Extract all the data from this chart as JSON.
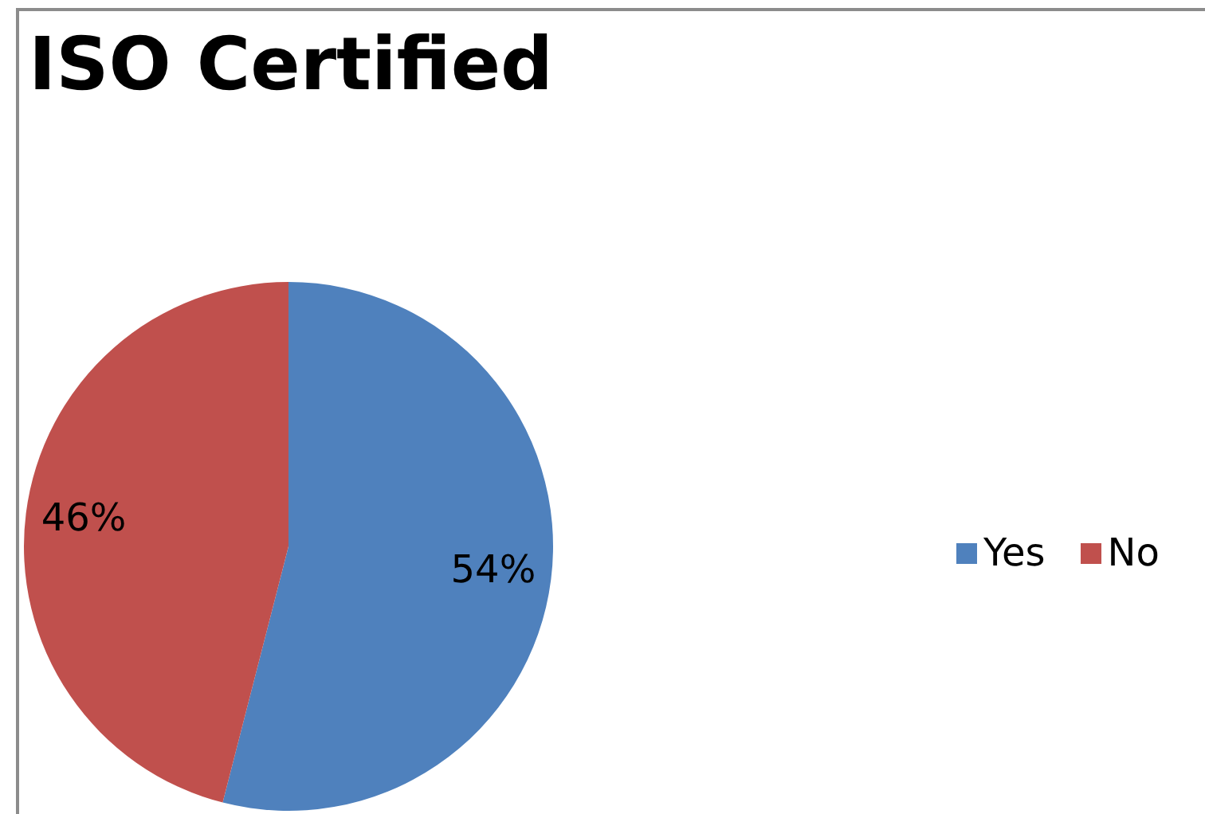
{
  "chart_data": {
    "type": "pie",
    "title": "ISO Certified",
    "categories": [
      "Yes",
      "No"
    ],
    "values": [
      54,
      46
    ],
    "value_labels": [
      "54%",
      "46%"
    ],
    "colors": [
      "#4f81bd",
      "#c0504d"
    ],
    "legend": "right"
  }
}
